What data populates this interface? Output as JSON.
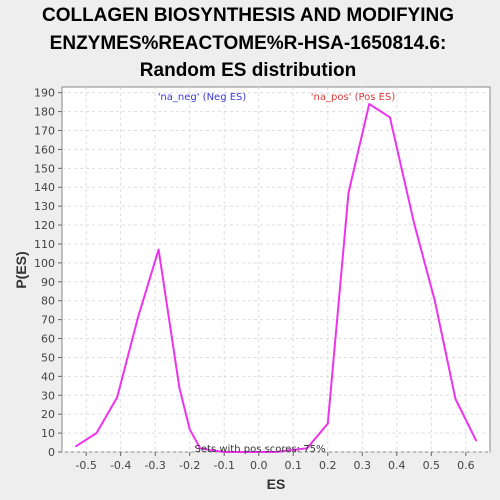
{
  "chart_data": {
    "type": "line",
    "title": [
      "COLLAGEN BIOSYNTHESIS AND MODIFYING",
      "ENZYMES%REACTOME%R-HSA-1650814.6:",
      "Random ES distribution"
    ],
    "xlabel": "ES",
    "ylabel": "P(ES)",
    "xlim": [
      -0.57,
      0.67
    ],
    "ylim": [
      0,
      193
    ],
    "grid": true,
    "x_ticks": [
      -0.5,
      -0.4,
      -0.3,
      -0.2,
      -0.1,
      0.0,
      0.1,
      0.2,
      0.3,
      0.4,
      0.5,
      0.6
    ],
    "x_tick_labels": [
      "-0.5",
      "-0.4",
      "-0.3",
      "-0.2",
      "-0.1",
      "0.0",
      "0.1",
      "0.2",
      "0.3",
      "0.4",
      "0.5",
      "0.6"
    ],
    "y_ticks": [
      0,
      10,
      20,
      30,
      40,
      50,
      60,
      70,
      80,
      90,
      100,
      110,
      120,
      130,
      140,
      150,
      160,
      170,
      180,
      190
    ],
    "y_tick_labels": [
      "0",
      "10",
      "20",
      "30",
      "40",
      "50",
      "60",
      "70",
      "80",
      "90",
      "100",
      "110",
      "120",
      "130",
      "140",
      "150",
      "160",
      "170",
      "180",
      "190"
    ],
    "series": [
      {
        "color": "#ee33ee",
        "x": [
          -0.53,
          -0.47,
          -0.41,
          -0.35,
          -0.29,
          -0.23,
          -0.2,
          -0.17,
          -0.14,
          -0.1,
          0.05,
          0.14,
          0.2,
          0.26,
          0.32,
          0.38,
          0.45,
          0.51,
          0.57,
          0.63
        ],
        "y": [
          3,
          10,
          29,
          71,
          107,
          34,
          12,
          2,
          1,
          0,
          0,
          2,
          15,
          137,
          184,
          177,
          121,
          80,
          28,
          6
        ]
      }
    ],
    "legend": [
      {
        "text": "'na_neg' (Neg ES)",
        "color": "#3a3ad6"
      },
      {
        "text": "'na_pos' (Pos ES)",
        "color": "#d63a3a"
      }
    ],
    "annotation": "Sets with pos scores: 75%"
  }
}
